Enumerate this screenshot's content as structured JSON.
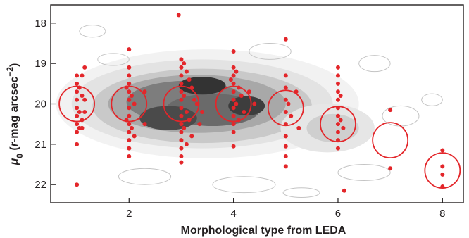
{
  "chart_data": {
    "type": "scatter",
    "xlabel": "Morphological type from LEDA",
    "ylabel": "μ0 (r-mag arcsec−2)",
    "ylabel_parts": {
      "symbol": "μ",
      "subscript": "0",
      "open": " (",
      "italic": "r",
      "unit": "-mag arcsec",
      "exponent": "−2",
      "close": ")"
    },
    "xlim": [
      0.5,
      8.4
    ],
    "ylim": [
      22.45,
      17.55
    ],
    "y_inverted": true,
    "xticks": [
      2,
      4,
      6,
      8
    ],
    "xtick_labels": [
      "2",
      "4",
      "6",
      "8"
    ],
    "yticks": [
      18,
      19,
      20,
      21,
      22
    ],
    "ytick_labels": [
      "18",
      "19",
      "20",
      "21",
      "22"
    ],
    "grid": false,
    "legend": "none",
    "background": "grayscale density contours of the full galaxy sample",
    "colors": {
      "points": "#e3262a",
      "circles": "#e3262a",
      "axes": "#231f20"
    },
    "series": [
      {
        "kind": "points",
        "points": [
          [
            1.0,
            19.3
          ],
          [
            1.0,
            19.5
          ],
          [
            1.0,
            19.7
          ],
          [
            1.0,
            19.9
          ],
          [
            1.0,
            20.1
          ],
          [
            1.0,
            20.3
          ],
          [
            1.0,
            20.5
          ],
          [
            1.0,
            20.7
          ],
          [
            1.0,
            21.0
          ],
          [
            1.0,
            22.0
          ],
          [
            1.05,
            19.6
          ],
          [
            1.05,
            20.2
          ],
          [
            1.05,
            20.6
          ],
          [
            1.1,
            19.3
          ],
          [
            1.1,
            19.8
          ],
          [
            1.1,
            20.4
          ],
          [
            1.15,
            19.1
          ],
          [
            1.15,
            19.9
          ],
          [
            1.15,
            20.2
          ],
          [
            1.1,
            20.6
          ],
          [
            2.0,
            18.65
          ],
          [
            2.0,
            19.1
          ],
          [
            2.0,
            19.3
          ],
          [
            2.0,
            19.5
          ],
          [
            2.0,
            19.7
          ],
          [
            2.0,
            19.9
          ],
          [
            2.0,
            20.1
          ],
          [
            2.0,
            20.3
          ],
          [
            2.0,
            20.5
          ],
          [
            2.0,
            20.7
          ],
          [
            2.0,
            20.9
          ],
          [
            2.0,
            21.1
          ],
          [
            2.0,
            21.3
          ],
          [
            1.95,
            19.6
          ],
          [
            1.95,
            20.4
          ],
          [
            2.05,
            19.8
          ],
          [
            2.05,
            20.6
          ],
          [
            2.1,
            20.0
          ],
          [
            2.1,
            20.8
          ],
          [
            2.3,
            19.7
          ],
          [
            2.3,
            20.5
          ],
          [
            2.95,
            17.8
          ],
          [
            3.0,
            18.9
          ],
          [
            3.0,
            19.1
          ],
          [
            3.0,
            19.3
          ],
          [
            3.0,
            19.5
          ],
          [
            3.0,
            19.7
          ],
          [
            3.0,
            19.9
          ],
          [
            3.0,
            20.1
          ],
          [
            3.0,
            20.3
          ],
          [
            3.0,
            20.5
          ],
          [
            3.0,
            20.7
          ],
          [
            3.0,
            20.9
          ],
          [
            3.0,
            21.1
          ],
          [
            3.0,
            21.3
          ],
          [
            3.0,
            21.45
          ],
          [
            3.05,
            19.0
          ],
          [
            3.05,
            19.8
          ],
          [
            3.05,
            20.6
          ],
          [
            3.1,
            19.2
          ],
          [
            3.1,
            20.2
          ],
          [
            3.1,
            21.0
          ],
          [
            3.15,
            19.4
          ],
          [
            3.15,
            20.4
          ],
          [
            3.2,
            19.6
          ],
          [
            3.2,
            20.8
          ],
          [
            3.25,
            19.9
          ],
          [
            3.3,
            20.0
          ],
          [
            3.35,
            20.5
          ],
          [
            3.4,
            20.2
          ],
          [
            4.0,
            18.7
          ],
          [
            4.0,
            19.1
          ],
          [
            4.0,
            19.3
          ],
          [
            4.0,
            19.5
          ],
          [
            4.0,
            19.7
          ],
          [
            4.0,
            19.9
          ],
          [
            4.0,
            20.1
          ],
          [
            4.0,
            20.3
          ],
          [
            4.0,
            20.5
          ],
          [
            4.0,
            20.7
          ],
          [
            4.0,
            21.05
          ],
          [
            4.05,
            19.2
          ],
          [
            4.05,
            20.0
          ],
          [
            4.1,
            19.6
          ],
          [
            4.1,
            20.4
          ],
          [
            3.95,
            19.4
          ],
          [
            4.15,
            19.8
          ],
          [
            4.2,
            20.2
          ],
          [
            4.3,
            19.7
          ],
          [
            4.4,
            20.0
          ],
          [
            5.0,
            18.4
          ],
          [
            5.0,
            19.3
          ],
          [
            5.0,
            19.6
          ],
          [
            5.0,
            19.9
          ],
          [
            5.0,
            20.2
          ],
          [
            5.0,
            20.5
          ],
          [
            5.0,
            20.8
          ],
          [
            5.0,
            21.05
          ],
          [
            5.0,
            21.3
          ],
          [
            5.0,
            21.55
          ],
          [
            5.05,
            20.0
          ],
          [
            5.1,
            20.3
          ],
          [
            5.2,
            19.7
          ],
          [
            5.25,
            20.6
          ],
          [
            6.0,
            19.1
          ],
          [
            6.0,
            19.3
          ],
          [
            6.0,
            19.5
          ],
          [
            6.0,
            19.7
          ],
          [
            6.0,
            19.9
          ],
          [
            6.0,
            20.1
          ],
          [
            6.0,
            20.3
          ],
          [
            6.0,
            20.5
          ],
          [
            6.0,
            20.7
          ],
          [
            6.0,
            20.9
          ],
          [
            6.0,
            21.1
          ],
          [
            6.05,
            19.8
          ],
          [
            6.05,
            20.4
          ],
          [
            6.1,
            20.6
          ],
          [
            6.12,
            22.15
          ],
          [
            7.0,
            20.15
          ],
          [
            7.0,
            21.6
          ],
          [
            8.0,
            21.15
          ],
          [
            8.0,
            21.55
          ],
          [
            8.0,
            21.75
          ],
          [
            8.0,
            22.05
          ]
        ]
      },
      {
        "kind": "mean-circles",
        "circles": [
          [
            1.0,
            20.0
          ],
          [
            2.0,
            20.0
          ],
          [
            3.0,
            20.0
          ],
          [
            4.0,
            20.0
          ],
          [
            5.0,
            20.1
          ],
          [
            6.0,
            20.5
          ],
          [
            7.0,
            20.9
          ],
          [
            8.0,
            21.65
          ]
        ]
      }
    ]
  }
}
